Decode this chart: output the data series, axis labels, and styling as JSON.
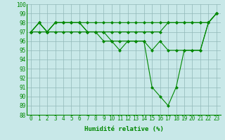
{
  "x": [
    0,
    1,
    2,
    3,
    4,
    5,
    6,
    7,
    8,
    9,
    10,
    11,
    12,
    13,
    14,
    15,
    16,
    17,
    18,
    19,
    20,
    21,
    22,
    23
  ],
  "line1": [
    97,
    98,
    97,
    98,
    98,
    98,
    98,
    98,
    98,
    98,
    98,
    98,
    98,
    98,
    98,
    98,
    98,
    98,
    98,
    98,
    98,
    98,
    98,
    99
  ],
  "line2": [
    97,
    98,
    97,
    98,
    98,
    98,
    98,
    97,
    97,
    97,
    97,
    97,
    97,
    97,
    97,
    97,
    97,
    98,
    98,
    98,
    98,
    98,
    98,
    99
  ],
  "line3": [
    97,
    97,
    97,
    97,
    97,
    97,
    97,
    97,
    97,
    97,
    96,
    96,
    96,
    96,
    96,
    95,
    96,
    95,
    95,
    95,
    95,
    95,
    98,
    99
  ],
  "line4": [
    97,
    98,
    97,
    98,
    98,
    98,
    98,
    97,
    97,
    96,
    96,
    95,
    96,
    96,
    96,
    91,
    90,
    89,
    91,
    95,
    95,
    95,
    98,
    99
  ],
  "line_color": "#008800",
  "bg_color": "#c8e8e8",
  "grid_color": "#90b8b8",
  "xlabel": "Humidité relative (%)",
  "ylim": [
    88,
    100
  ],
  "xlim": [
    -0.5,
    23.5
  ],
  "yticks": [
    88,
    89,
    90,
    91,
    92,
    93,
    94,
    95,
    96,
    97,
    98,
    99,
    100
  ],
  "xticks": [
    0,
    1,
    2,
    3,
    4,
    5,
    6,
    7,
    8,
    9,
    10,
    11,
    12,
    13,
    14,
    15,
    16,
    17,
    18,
    19,
    20,
    21,
    22,
    23
  ],
  "tick_fontsize": 5.5,
  "xlabel_fontsize": 6.5
}
